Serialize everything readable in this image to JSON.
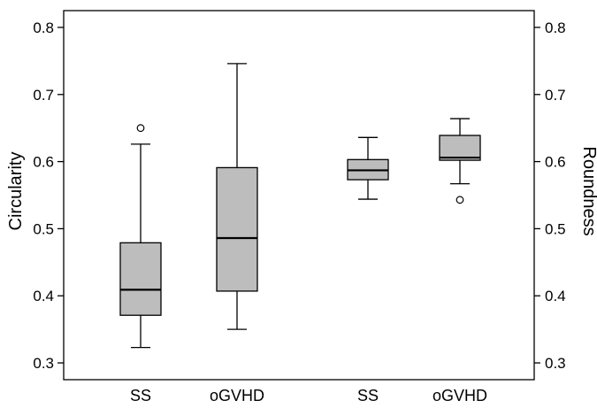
{
  "chart_data": {
    "type": "boxplot",
    "categories": [
      "SS",
      "oGVHD",
      "SS",
      "oGVHD"
    ],
    "ylabel_left": "Circularity",
    "ylabel_right": "Roundness",
    "ylim": [
      0.275,
      0.825
    ],
    "yticks": [
      0.3,
      0.4,
      0.5,
      0.6,
      0.7,
      0.8
    ],
    "ytick_labels": [
      "0.3",
      "0.4",
      "0.5",
      "0.6",
      "0.7",
      "0.8"
    ],
    "box_color": "#bdbdbd",
    "grid": false,
    "boxes": [
      {
        "axis": "left",
        "whisker_low": 0.323,
        "q1": 0.371,
        "median": 0.409,
        "q3": 0.479,
        "whisker_high": 0.626,
        "outliers": [
          0.65
        ]
      },
      {
        "axis": "left",
        "whisker_low": 0.35,
        "q1": 0.407,
        "median": 0.486,
        "q3": 0.591,
        "whisker_high": 0.746,
        "outliers": []
      },
      {
        "axis": "right",
        "whisker_low": 0.544,
        "q1": 0.573,
        "median": 0.587,
        "q3": 0.603,
        "whisker_high": 0.636,
        "outliers": []
      },
      {
        "axis": "right",
        "whisker_low": 0.567,
        "q1": 0.602,
        "median": 0.606,
        "q3": 0.639,
        "whisker_high": 0.664,
        "outliers": [
          0.543
        ]
      }
    ]
  }
}
